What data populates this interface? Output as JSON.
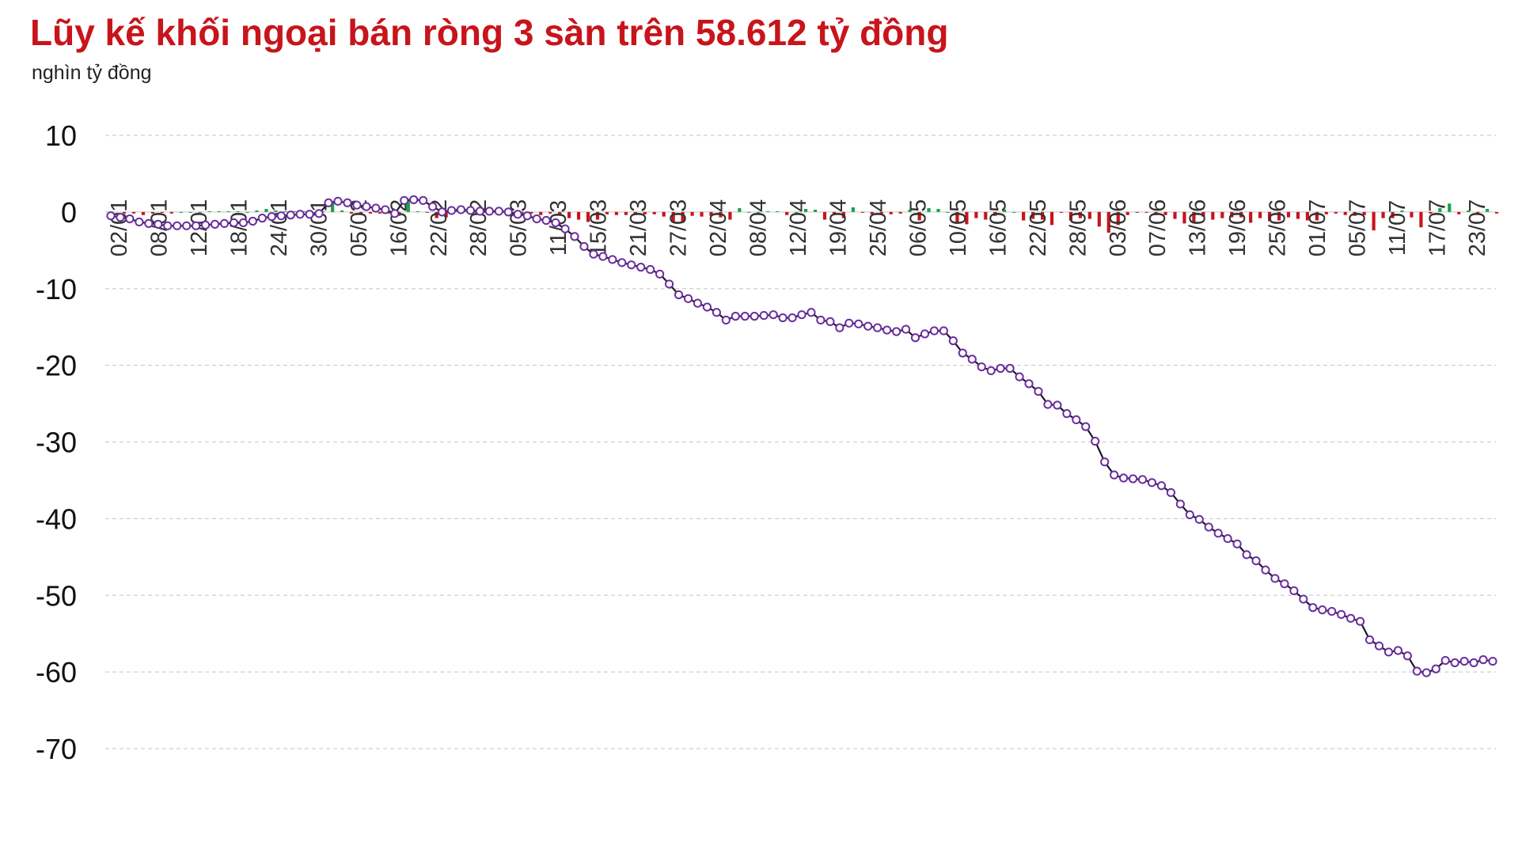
{
  "title": "Lũy kế khối ngoại bán ròng 3 sàn trên 58.612 tỷ đồng",
  "unit_label": "nghìn tỷ đồng",
  "colors": {
    "title": "#c8141b",
    "line": "#1a1a1a",
    "marker_stroke": "#6a2fa0",
    "marker_fill": "#ffffff",
    "bar_positive": "#16a34a",
    "bar_negative": "#c8141b",
    "grid": "#cfcfcf"
  },
  "chart_data": {
    "type": "bar+line",
    "ylim": [
      -70,
      10
    ],
    "yticks": [
      10,
      0,
      -10,
      -20,
      -30,
      -40,
      -50,
      -60,
      -70
    ],
    "grid": true,
    "x_tick_labels": [
      "02/01",
      "08/01",
      "12/01",
      "18/01",
      "24/01",
      "30/01",
      "05/02",
      "16/02",
      "22/02",
      "28/02",
      "05/03",
      "11/03",
      "15/03",
      "21/03",
      "27/03",
      "02/04",
      "08/04",
      "12/04",
      "19/04",
      "25/04",
      "06/05",
      "10/05",
      "16/05",
      "22/05",
      "28/05",
      "03/06",
      "07/06",
      "13/06",
      "19/06",
      "25/06",
      "01/07",
      "05/07",
      "11/07",
      "17/07",
      "23/07"
    ],
    "series": [
      {
        "kind": "line",
        "values": [
          -0.5,
          -0.7,
          -0.9,
          -1.3,
          -1.5,
          -1.6,
          -1.8,
          -1.8,
          -1.8,
          -1.8,
          -1.7,
          -1.6,
          -1.5,
          -1.4,
          -1.4,
          -1.2,
          -0.8,
          -0.6,
          -0.5,
          -0.4,
          -0.3,
          -0.3,
          -0.2,
          1.2,
          1.4,
          1.2,
          0.9,
          0.7,
          0.5,
          0.3,
          -0.2,
          1.5,
          1.6,
          1.5,
          0.7,
          0.0,
          0.2,
          0.3,
          0.2,
          0.1,
          0.1,
          0.1,
          0.0,
          -0.3,
          -0.5,
          -0.9,
          -1.1,
          -1.4,
          -2.2,
          -3.2,
          -4.5,
          -5.5,
          -5.8,
          -6.2,
          -6.6,
          -6.9,
          -7.2,
          -7.5,
          -8.1,
          -9.4,
          -10.8,
          -11.3,
          -11.9,
          -12.4,
          -13.1,
          -14.1,
          -13.6,
          -13.6,
          -13.6,
          -13.5,
          -13.4,
          -13.8,
          -13.8,
          -13.4,
          -13.1,
          -14.1,
          -14.3,
          -15.1,
          -14.5,
          -14.6,
          -14.9,
          -15.1,
          -15.4,
          -15.6,
          -15.3,
          -16.4,
          -15.9,
          -15.5,
          -15.5,
          -16.8,
          -18.4,
          -19.2,
          -20.2,
          -20.7,
          -20.4,
          -20.4,
          -21.5,
          -22.4,
          -23.4,
          -25.1,
          -25.2,
          -26.3,
          -27.1,
          -28.0,
          -29.9,
          -32.6,
          -34.3,
          -34.7,
          -34.8,
          -34.9,
          -35.3,
          -35.7,
          -36.6,
          -38.1,
          -39.5,
          -40.1,
          -41.1,
          -41.9,
          -42.6,
          -43.3,
          -44.7,
          -45.5,
          -46.7,
          -47.8,
          -48.5,
          -49.4,
          -50.5,
          -51.6,
          -51.9,
          -52.1,
          -52.5,
          -53.0,
          -53.4,
          -55.8,
          -56.6,
          -57.4,
          -57.2,
          -57.9,
          -59.9,
          -60.1,
          -59.6,
          -58.5,
          -58.8,
          -58.6,
          -58.8,
          -58.4,
          -58.6
        ]
      }
    ]
  }
}
